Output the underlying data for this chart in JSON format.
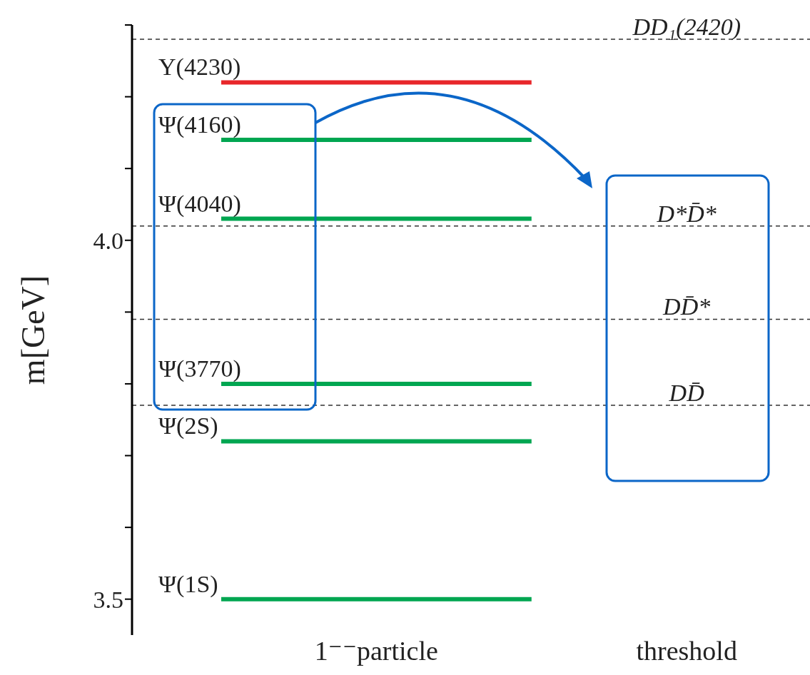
{
  "chart_data": {
    "type": "line",
    "ylabel": "m[GeV]",
    "categories": [
      null,
      "1⁻⁻particle",
      null,
      "threshold"
    ],
    "ylim": [
      3.45,
      4.3
    ],
    "yticks": [
      {
        "value": 3.5,
        "label": "3.5"
      },
      {
        "value": 3.6,
        "label": null
      },
      {
        "value": 3.7,
        "label": null
      },
      {
        "value": 3.8,
        "label": null
      },
      {
        "value": 3.9,
        "label": null
      },
      {
        "value": 4.0,
        "label": "4.0"
      },
      {
        "value": 4.1,
        "label": null
      },
      {
        "value": 4.2,
        "label": null
      },
      {
        "value": 4.3,
        "label": null
      }
    ],
    "marker": "none",
    "legend": false,
    "series": [
      {
        "name": "Y(4230)",
        "color": "#e8262a",
        "values": [
          4.22,
          4.22,
          4.22,
          null
        ]
      },
      {
        "name": "Ψ(4160)",
        "color": "#00a651",
        "values": [
          4.14,
          4.14,
          4.14,
          null
        ]
      },
      {
        "name": "Ψ(4040)",
        "color": "#00a651",
        "values": [
          4.03,
          4.03,
          4.03,
          null
        ]
      },
      {
        "name": "Ψ(3770)",
        "color": "#00a651",
        "values": [
          3.8,
          3.8,
          3.8,
          null
        ]
      },
      {
        "name": "Ψ(2S)",
        "color": "#00a651",
        "values": [
          3.72,
          3.72,
          3.72,
          null
        ]
      },
      {
        "name": "Ψ(1S)",
        "color": "#00a651",
        "values": [
          3.5,
          3.5,
          3.5,
          null
        ]
      }
    ],
    "ref_lines": [
      {
        "axis": "y",
        "value": 4.28,
        "label": "DD₁(2420)",
        "color": "#333333",
        "line_style": "dashed"
      },
      {
        "axis": "y",
        "value": 4.02,
        "label": "D*D̄*",
        "color": "#333333",
        "line_style": "dashed"
      },
      {
        "axis": "y",
        "value": 3.89,
        "label": "DD̄*",
        "color": "#333333",
        "line_style": "dashed"
      },
      {
        "axis": "y",
        "value": 3.77,
        "label": "DD̄",
        "color": "#333333",
        "line_style": "dashed"
      }
    ]
  }
}
